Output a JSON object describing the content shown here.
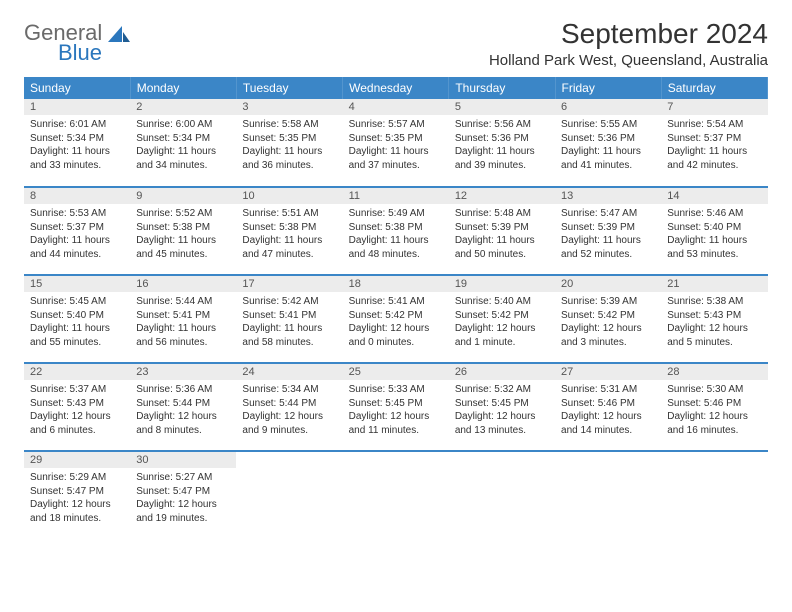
{
  "brand": {
    "line1": "General",
    "line2": "Blue"
  },
  "title": "September 2024",
  "location": "Holland Park West, Queensland, Australia",
  "colors": {
    "header_bg": "#3b86c7",
    "header_text": "#ffffff",
    "daynum_bg": "#ececec",
    "row_border": "#3b86c7",
    "logo_gray": "#6a6a6a",
    "logo_blue": "#2b77bd"
  },
  "weekdays": [
    "Sunday",
    "Monday",
    "Tuesday",
    "Wednesday",
    "Thursday",
    "Friday",
    "Saturday"
  ],
  "days": [
    {
      "n": 1,
      "sr": "6:01 AM",
      "ss": "5:34 PM",
      "dl": "11 hours and 33 minutes."
    },
    {
      "n": 2,
      "sr": "6:00 AM",
      "ss": "5:34 PM",
      "dl": "11 hours and 34 minutes."
    },
    {
      "n": 3,
      "sr": "5:58 AM",
      "ss": "5:35 PM",
      "dl": "11 hours and 36 minutes."
    },
    {
      "n": 4,
      "sr": "5:57 AM",
      "ss": "5:35 PM",
      "dl": "11 hours and 37 minutes."
    },
    {
      "n": 5,
      "sr": "5:56 AM",
      "ss": "5:36 PM",
      "dl": "11 hours and 39 minutes."
    },
    {
      "n": 6,
      "sr": "5:55 AM",
      "ss": "5:36 PM",
      "dl": "11 hours and 41 minutes."
    },
    {
      "n": 7,
      "sr": "5:54 AM",
      "ss": "5:37 PM",
      "dl": "11 hours and 42 minutes."
    },
    {
      "n": 8,
      "sr": "5:53 AM",
      "ss": "5:37 PM",
      "dl": "11 hours and 44 minutes."
    },
    {
      "n": 9,
      "sr": "5:52 AM",
      "ss": "5:38 PM",
      "dl": "11 hours and 45 minutes."
    },
    {
      "n": 10,
      "sr": "5:51 AM",
      "ss": "5:38 PM",
      "dl": "11 hours and 47 minutes."
    },
    {
      "n": 11,
      "sr": "5:49 AM",
      "ss": "5:38 PM",
      "dl": "11 hours and 48 minutes."
    },
    {
      "n": 12,
      "sr": "5:48 AM",
      "ss": "5:39 PM",
      "dl": "11 hours and 50 minutes."
    },
    {
      "n": 13,
      "sr": "5:47 AM",
      "ss": "5:39 PM",
      "dl": "11 hours and 52 minutes."
    },
    {
      "n": 14,
      "sr": "5:46 AM",
      "ss": "5:40 PM",
      "dl": "11 hours and 53 minutes."
    },
    {
      "n": 15,
      "sr": "5:45 AM",
      "ss": "5:40 PM",
      "dl": "11 hours and 55 minutes."
    },
    {
      "n": 16,
      "sr": "5:44 AM",
      "ss": "5:41 PM",
      "dl": "11 hours and 56 minutes."
    },
    {
      "n": 17,
      "sr": "5:42 AM",
      "ss": "5:41 PM",
      "dl": "11 hours and 58 minutes."
    },
    {
      "n": 18,
      "sr": "5:41 AM",
      "ss": "5:42 PM",
      "dl": "12 hours and 0 minutes."
    },
    {
      "n": 19,
      "sr": "5:40 AM",
      "ss": "5:42 PM",
      "dl": "12 hours and 1 minute."
    },
    {
      "n": 20,
      "sr": "5:39 AM",
      "ss": "5:42 PM",
      "dl": "12 hours and 3 minutes."
    },
    {
      "n": 21,
      "sr": "5:38 AM",
      "ss": "5:43 PM",
      "dl": "12 hours and 5 minutes."
    },
    {
      "n": 22,
      "sr": "5:37 AM",
      "ss": "5:43 PM",
      "dl": "12 hours and 6 minutes."
    },
    {
      "n": 23,
      "sr": "5:36 AM",
      "ss": "5:44 PM",
      "dl": "12 hours and 8 minutes."
    },
    {
      "n": 24,
      "sr": "5:34 AM",
      "ss": "5:44 PM",
      "dl": "12 hours and 9 minutes."
    },
    {
      "n": 25,
      "sr": "5:33 AM",
      "ss": "5:45 PM",
      "dl": "12 hours and 11 minutes."
    },
    {
      "n": 26,
      "sr": "5:32 AM",
      "ss": "5:45 PM",
      "dl": "12 hours and 13 minutes."
    },
    {
      "n": 27,
      "sr": "5:31 AM",
      "ss": "5:46 PM",
      "dl": "12 hours and 14 minutes."
    },
    {
      "n": 28,
      "sr": "5:30 AM",
      "ss": "5:46 PM",
      "dl": "12 hours and 16 minutes."
    },
    {
      "n": 29,
      "sr": "5:29 AM",
      "ss": "5:47 PM",
      "dl": "12 hours and 18 minutes."
    },
    {
      "n": 30,
      "sr": "5:27 AM",
      "ss": "5:47 PM",
      "dl": "12 hours and 19 minutes."
    }
  ],
  "labels": {
    "sunrise": "Sunrise:",
    "sunset": "Sunset:",
    "daylight": "Daylight:"
  }
}
